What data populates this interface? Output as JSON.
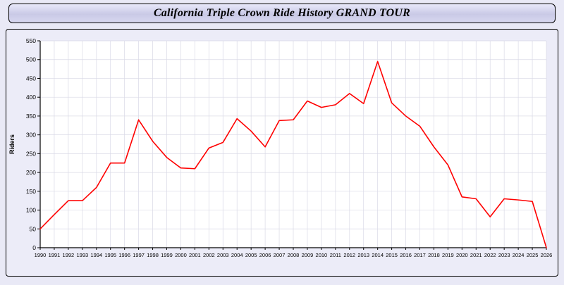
{
  "title": "California Triple Crown Ride History GRAND TOUR",
  "chart_data": {
    "type": "line",
    "title": "California Triple Crown Ride History GRAND TOUR",
    "xlabel": "",
    "ylabel": "Riders",
    "ylim": [
      0,
      550
    ],
    "ytick_step": 50,
    "grid": true,
    "grid_color": "#d9d9e6",
    "axis_color": "#000000",
    "plot_bg": "#ffffff",
    "legend": "none",
    "x": [
      1990,
      1991,
      1992,
      1993,
      1994,
      1995,
      1996,
      1997,
      1998,
      1999,
      2000,
      2001,
      2002,
      2003,
      2004,
      2005,
      2006,
      2007,
      2008,
      2009,
      2010,
      2011,
      2012,
      2013,
      2014,
      2015,
      2016,
      2017,
      2018,
      2019,
      2020,
      2021,
      2022,
      2023,
      2024,
      2025,
      2026
    ],
    "series": [
      {
        "name": "Riders",
        "color": "#ff0000",
        "values": [
          50,
          88,
          125,
          125,
          160,
          225,
          225,
          340,
          283,
          240,
          212,
          210,
          265,
          280,
          343,
          310,
          268,
          338,
          340,
          390,
          373,
          380,
          410,
          383,
          495,
          385,
          350,
          323,
          268,
          220,
          135,
          130,
          82,
          130,
          127,
          123,
          0
        ]
      }
    ]
  }
}
